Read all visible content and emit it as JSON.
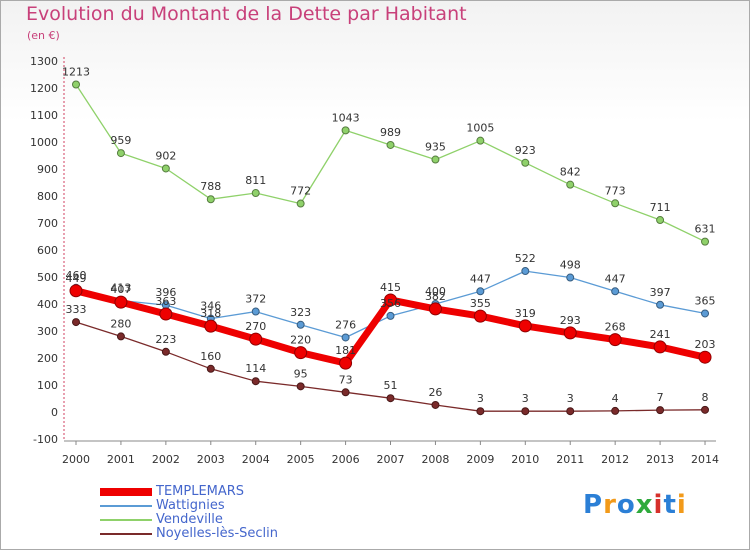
{
  "title": "Evolution du Montant de la Dette par Habitant",
  "subtitle": "(en €)",
  "logo": "Proxiti",
  "logo_colors": [
    "#2b7fd6",
    "#f29a1a",
    "#2b7fd6",
    "#2eaa3c",
    "#d6302b",
    "#2b7fd6",
    "#f29a1a"
  ],
  "chart_data": {
    "type": "line",
    "title": "Evolution du Montant de la Dette par Habitant",
    "ylabel": "(en €)",
    "x": [
      "2000",
      "2001",
      "2002",
      "2003",
      "2004",
      "2005",
      "2006",
      "2007",
      "2008",
      "2009",
      "2010",
      "2011",
      "2012",
      "2013",
      "2014"
    ],
    "yticks": [
      "-100",
      "0",
      "100",
      "200",
      "300",
      "400",
      "500",
      "600",
      "700",
      "800",
      "900",
      "1000",
      "1100",
      "1200",
      "1300"
    ],
    "ylim": [
      -100,
      1300
    ],
    "grid": false,
    "legend": "bottom-left",
    "series": [
      {
        "name": "TEMPLEMARS",
        "color": "#ee0000",
        "values": [
          449,
          407,
          363,
          318,
          270,
          220,
          181,
          415,
          382,
          355,
          319,
          293,
          268,
          241,
          203
        ]
      },
      {
        "name": "Wattignies",
        "color": "#5b9bd5",
        "values": [
          460,
          413,
          396,
          346,
          372,
          323,
          276,
          356,
          400,
          447,
          522,
          498,
          447,
          397,
          365
        ]
      },
      {
        "name": "Vendeville",
        "color": "#8fd16a",
        "values": [
          1213,
          959,
          902,
          788,
          811,
          772,
          1043,
          989,
          935,
          1005,
          923,
          842,
          773,
          711,
          631
        ]
      },
      {
        "name": "Noyelles-lès-Seclin",
        "color": "#7a2a2a",
        "values": [
          333,
          280,
          223,
          160,
          114,
          95,
          73,
          51,
          26,
          3,
          3,
          3,
          4,
          7,
          8
        ]
      }
    ]
  }
}
